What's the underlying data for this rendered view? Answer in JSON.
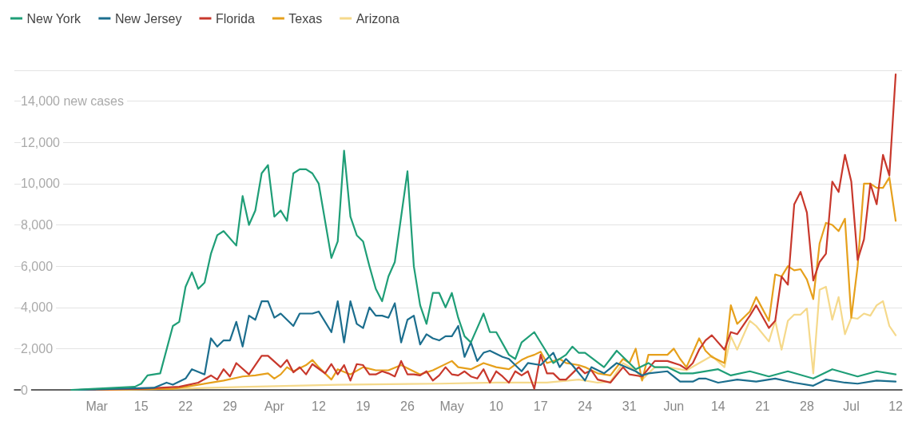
{
  "chart_data": {
    "type": "line",
    "ylim": [
      0,
      15500
    ],
    "yticks": [
      0,
      {
        "value": 2000,
        "label": "2,000"
      },
      {
        "value": 4000,
        "label": "4,000"
      },
      {
        "value": 6000,
        "label": "6,000"
      },
      {
        "value": 8000,
        "label": "8,000"
      },
      {
        "value": 10000,
        "label": "10,000"
      },
      {
        "value": 12000,
        "label": "12,000"
      },
      {
        "value": 14000,
        "label": "14,000 new cases"
      },
      {
        "value": 15500,
        "label": null
      }
    ],
    "xlim": [
      "--02-23",
      "--07-13"
    ],
    "xticks": [
      {
        "value": "--03-08",
        "label": "Mar"
      },
      {
        "value": "--03-15",
        "label": "15"
      },
      {
        "value": "--03-22",
        "label": "22"
      },
      {
        "value": "--03-29",
        "label": "29"
      },
      {
        "value": "--04-05",
        "label": "Apr"
      },
      {
        "value": "--04-12",
        "label": "12"
      },
      {
        "value": "--04-19",
        "label": "19"
      },
      {
        "value": "--04-26",
        "label": "26"
      },
      {
        "value": "--05-03",
        "label": "May"
      },
      {
        "value": "--05-10",
        "label": "10"
      },
      {
        "value": "--05-17",
        "label": "17"
      },
      {
        "value": "--05-24",
        "label": "24"
      },
      {
        "value": "--05-31",
        "label": "31"
      },
      {
        "value": "--06-07",
        "label": "Jun"
      },
      {
        "value": "--06-14",
        "label": "14"
      },
      {
        "value": "--06-21",
        "label": "21"
      },
      {
        "value": "--06-28",
        "label": "28"
      },
      {
        "value": "--07-05",
        "label": "Jul"
      },
      {
        "value": "--07-12",
        "label": "12"
      }
    ],
    "grid": "y",
    "legend": "top left",
    "marker": "none",
    "line_style": "solid",
    "series": [
      {
        "name": "Arizona",
        "color": "#f5d98b",
        "x": [
          "--03-08",
          "--03-20",
          "--04-01",
          "--04-15",
          "--05-01",
          "--05-10",
          "--05-18",
          "--05-23",
          "--05-26",
          "--05-28",
          "--05-30",
          "--06-01",
          "--06-02",
          "--06-04",
          "--06-06",
          "--06-09",
          "--06-11",
          "--06-13",
          "--06-15",
          "--06-16",
          "--06-17",
          "--06-19",
          "--06-20",
          "--06-22",
          "--06-23",
          "--06-24",
          "--06-25",
          "--06-26",
          "--06-27",
          "--06-28",
          "--06-29",
          "--06-30",
          "--07-01",
          "--07-02",
          "--07-03",
          "--07-04",
          "--07-05",
          "--07-06",
          "--07-07",
          "--07-08",
          "--07-09",
          "--07-10",
          "--07-11",
          "--07-12"
        ],
        "values": [
          0,
          50,
          150,
          250,
          300,
          350,
          350,
          500,
          350,
          400,
          1300,
          950,
          500,
          1100,
          1100,
          950,
          1300,
          1650,
          1100,
          2600,
          1950,
          3350,
          3100,
          2350,
          3350,
          1950,
          3350,
          3650,
          3650,
          3950,
          800,
          4850,
          5000,
          3400,
          4500,
          2700,
          3500,
          3450,
          3700,
          3600,
          4100,
          4300,
          3100,
          2650
        ]
      },
      {
        "name": "Texas",
        "color": "#e6a01c",
        "x": [
          "--03-08",
          "--03-20",
          "--03-24",
          "--03-28",
          "--03-31",
          "--04-02",
          "--04-04",
          "--04-05",
          "--04-06",
          "--04-07",
          "--04-08",
          "--04-10",
          "--04-11",
          "--04-12",
          "--04-14",
          "--04-15",
          "--04-17",
          "--04-19",
          "--04-21",
          "--04-23",
          "--04-25",
          "--04-28",
          "--04-30",
          "--05-03",
          "--05-04",
          "--05-06",
          "--05-08",
          "--05-10",
          "--05-12",
          "--05-14",
          "--05-15",
          "--05-16",
          "--05-17",
          "--05-18",
          "--05-20",
          "--05-21",
          "--05-23",
          "--05-24",
          "--05-26",
          "--05-28",
          "--05-30",
          "--05-31",
          "--06-01",
          "--06-02",
          "--06-03",
          "--06-05",
          "--06-06",
          "--06-07",
          "--06-08",
          "--06-09",
          "--06-11",
          "--06-12",
          "--06-13",
          "--06-15",
          "--06-16",
          "--06-17",
          "--06-19",
          "--06-20",
          "--06-22",
          "--06-23",
          "--06-24",
          "--06-25",
          "--06-26",
          "--06-27",
          "--06-28",
          "--06-29",
          "--06-30",
          "--07-01",
          "--07-02",
          "--07-03",
          "--07-04",
          "--07-05",
          "--07-06",
          "--07-07",
          "--07-08",
          "--07-09",
          "--07-10",
          "--07-11",
          "--07-12"
        ],
        "values": [
          0,
          50,
          250,
          450,
          650,
          700,
          800,
          550,
          750,
          1100,
          900,
          1200,
          1450,
          1100,
          500,
          1000,
          750,
          1100,
          950,
          950,
          1200,
          750,
          950,
          1400,
          1100,
          1000,
          1300,
          1100,
          1000,
          1450,
          1600,
          1700,
          1850,
          1300,
          1500,
          1300,
          1200,
          1100,
          800,
          700,
          1500,
          1300,
          2000,
          450,
          1700,
          1700,
          1700,
          2000,
          1500,
          1100,
          2500,
          1900,
          1600,
          1300,
          4100,
          3200,
          3800,
          4500,
          3350,
          5600,
          5500,
          6000,
          5800,
          5850,
          5350,
          4400,
          7100,
          8100,
          8000,
          7700,
          8300,
          3500,
          6000,
          10000,
          10000,
          9800,
          9800,
          10300,
          8200
        ]
      },
      {
        "name": "Florida",
        "color": "#c8382c",
        "x": [
          "--03-05",
          "--03-15",
          "--03-21",
          "--03-24",
          "--03-26",
          "--03-27",
          "--03-28",
          "--03-29",
          "--03-30",
          "--04-01",
          "--04-03",
          "--04-04",
          "--04-06",
          "--04-07",
          "--04-08",
          "--04-09",
          "--04-10",
          "--04-11",
          "--04-13",
          "--04-14",
          "--04-15",
          "--04-16",
          "--04-17",
          "--04-18",
          "--04-19",
          "--04-20",
          "--04-21",
          "--04-22",
          "--04-23",
          "--04-24",
          "--04-25",
          "--04-26",
          "--04-27",
          "--04-28",
          "--04-29",
          "--04-30",
          "--05-01",
          "--05-02",
          "--05-03",
          "--05-04",
          "--05-05",
          "--05-06",
          "--05-07",
          "--05-08",
          "--05-09",
          "--05-10",
          "--05-11",
          "--05-12",
          "--05-13",
          "--05-14",
          "--05-15",
          "--05-16",
          "--05-17",
          "--05-18",
          "--05-19",
          "--05-20",
          "--05-21",
          "--05-23",
          "--05-24",
          "--05-25",
          "--05-26",
          "--05-28",
          "--05-30",
          "--05-31",
          "--06-02",
          "--06-04",
          "--06-06",
          "--06-08",
          "--06-09",
          "--06-10",
          "--06-11",
          "--06-12",
          "--06-13",
          "--06-15",
          "--06-16",
          "--06-17",
          "--06-19",
          "--06-20",
          "--06-22",
          "--06-23",
          "--06-24",
          "--06-25",
          "--06-26",
          "--06-27",
          "--06-28",
          "--06-29",
          "--06-30",
          "--07-01",
          "--07-02",
          "--07-03",
          "--07-04",
          "--07-05",
          "--07-06",
          "--07-07",
          "--07-08",
          "--07-09",
          "--07-10",
          "--07-11",
          "--07-12"
        ],
        "values": [
          0,
          50,
          150,
          350,
          700,
          500,
          1000,
          650,
          1300,
          750,
          1650,
          1650,
          1100,
          1450,
          850,
          1100,
          750,
          1250,
          800,
          1250,
          750,
          1200,
          450,
          1250,
          1200,
          750,
          750,
          900,
          800,
          650,
          1400,
          750,
          750,
          700,
          900,
          450,
          700,
          1100,
          750,
          700,
          900,
          650,
          550,
          1000,
          350,
          900,
          650,
          350,
          900,
          700,
          900,
          50,
          1700,
          800,
          800,
          500,
          500,
          1100,
          800,
          950,
          500,
          350,
          1100,
          750,
          650,
          1400,
          1400,
          1200,
          1000,
          1300,
          1950,
          2400,
          2650,
          1950,
          2800,
          2700,
          3600,
          4100,
          3000,
          3350,
          5500,
          5100,
          9000,
          9600,
          8600,
          5300,
          6200,
          6600,
          10100,
          9600,
          11400,
          10100,
          6300,
          7300,
          10000,
          9000,
          11400,
          10400,
          15300
        ]
      },
      {
        "name": "New Jersey",
        "color": "#1c6e8e",
        "x": [
          "--03-05",
          "--03-17",
          "--03-19",
          "--03-20",
          "--03-22",
          "--03-23",
          "--03-25",
          "--03-26",
          "--03-27",
          "--03-28",
          "--03-29",
          "--03-30",
          "--03-31",
          "--04-01",
          "--04-02",
          "--04-03",
          "--04-04",
          "--04-05",
          "--04-06",
          "--04-08",
          "--04-09",
          "--04-11",
          "--04-12",
          "--04-14",
          "--04-15",
          "--04-16",
          "--04-17",
          "--04-18",
          "--04-19",
          "--04-20",
          "--04-21",
          "--04-22",
          "--04-23",
          "--04-24",
          "--04-25",
          "--04-26",
          "--04-27",
          "--04-28",
          "--04-29",
          "--04-30",
          "--05-01",
          "--05-02",
          "--05-03",
          "--05-04",
          "--05-05",
          "--05-06",
          "--05-07",
          "--05-08",
          "--05-09",
          "--05-11",
          "--05-12",
          "--05-14",
          "--05-15",
          "--05-17",
          "--05-19",
          "--05-20",
          "--05-21",
          "--05-22",
          "--05-24",
          "--05-25",
          "--05-27",
          "--05-29",
          "--06-01",
          "--06-02",
          "--06-03",
          "--06-06",
          "--06-08",
          "--06-10",
          "--06-11",
          "--06-12",
          "--06-14",
          "--06-17",
          "--06-20",
          "--06-23",
          "--06-26",
          "--06-29",
          "--07-01",
          "--07-04",
          "--07-06",
          "--07-09",
          "--07-12"
        ],
        "values": [
          0,
          100,
          350,
          250,
          550,
          1000,
          750,
          2500,
          2100,
          2400,
          2400,
          3300,
          2100,
          3600,
          3400,
          4300,
          4300,
          3500,
          3700,
          3100,
          3700,
          3700,
          3800,
          2800,
          4300,
          2300,
          4300,
          3200,
          3000,
          4000,
          3600,
          3600,
          3500,
          4200,
          2300,
          3400,
          3600,
          2200,
          2700,
          2500,
          2400,
          2600,
          2600,
          3100,
          1600,
          2300,
          1400,
          1800,
          1900,
          1600,
          1500,
          900,
          1300,
          1200,
          1800,
          1100,
          1500,
          1200,
          450,
          1100,
          800,
          1300,
          900,
          700,
          800,
          900,
          400,
          400,
          550,
          550,
          350,
          500,
          400,
          550,
          350,
          200,
          500,
          350,
          300,
          450,
          400
        ]
      },
      {
        "name": "New York",
        "color": "#1f9e77",
        "x": [
          "--03-04",
          "--03-14",
          "--03-15",
          "--03-16",
          "--03-17",
          "--03-18",
          "--03-20",
          "--03-21",
          "--03-22",
          "--03-23",
          "--03-24",
          "--03-25",
          "--03-26",
          "--03-27",
          "--03-28",
          "--03-30",
          "--03-31",
          "--04-01",
          "--04-02",
          "--04-03",
          "--04-04",
          "--04-05",
          "--04-06",
          "--04-07",
          "--04-08",
          "--04-09",
          "--04-10",
          "--04-11",
          "--04-12",
          "--04-14",
          "--04-15",
          "--04-16",
          "--04-17",
          "--04-18",
          "--04-19",
          "--04-20",
          "--04-21",
          "--04-22",
          "--04-23",
          "--04-24",
          "--04-25",
          "--04-26",
          "--04-27",
          "--04-28",
          "--04-29",
          "--04-30",
          "--05-01",
          "--05-02",
          "--05-03",
          "--05-04",
          "--05-05",
          "--05-06",
          "--05-07",
          "--05-08",
          "--05-09",
          "--05-10",
          "--05-12",
          "--05-13",
          "--05-14",
          "--05-16",
          "--05-18",
          "--05-19",
          "--05-21",
          "--05-22",
          "--05-23",
          "--05-24",
          "--05-27",
          "--05-29",
          "--05-30",
          "--06-01",
          "--06-03",
          "--06-04",
          "--06-06",
          "--06-08",
          "--06-10",
          "--06-14",
          "--06-16",
          "--06-19",
          "--06-22",
          "--06-25",
          "--06-29",
          "--07-02",
          "--07-06",
          "--07-09",
          "--07-12"
        ],
        "values": [
          0,
          150,
          300,
          700,
          750,
          800,
          3100,
          3300,
          5000,
          5700,
          4900,
          5200,
          6600,
          7500,
          7700,
          7000,
          9400,
          8000,
          8700,
          10500,
          10900,
          8400,
          8700,
          8200,
          10500,
          10700,
          10700,
          10500,
          10000,
          6400,
          7200,
          11600,
          8400,
          7500,
          7200,
          6000,
          4900,
          4300,
          5500,
          6200,
          8400,
          10600,
          6000,
          4100,
          3200,
          4700,
          4700,
          4000,
          4700,
          3500,
          2600,
          2300,
          3000,
          3700,
          2800,
          2800,
          1700,
          1500,
          2300,
          2800,
          1800,
          1300,
          1700,
          2100,
          1800,
          1800,
          1100,
          1900,
          1600,
          1000,
          1300,
          1100,
          1100,
          800,
          800,
          1000,
          700,
          900,
          650,
          900,
          550,
          1000,
          650,
          900,
          750
        ]
      }
    ]
  }
}
